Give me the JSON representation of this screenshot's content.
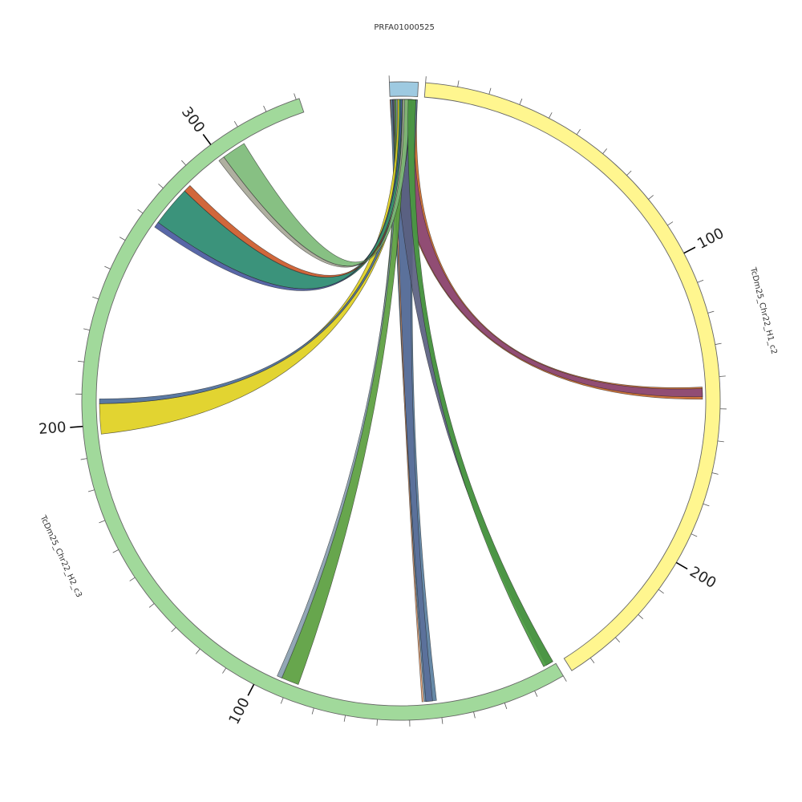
{
  "segments": [
    {
      "id": "chr_a",
      "name": "PRFA01000525",
      "length": 9,
      "color": "#9ecae1"
    },
    {
      "id": "chr_b",
      "name": "TcDm25_Chr22_H1_c2",
      "length": 247,
      "color": "#fff68f"
    },
    {
      "id": "chr_c",
      "name": "TcDm25_Chr22_H2_c3",
      "length": 331,
      "color": "#a1d99b"
    }
  ],
  "ticks": {
    "minor_step": 10,
    "major_step": 100
  },
  "links": [
    {
      "from": {
        "seg": "chr_a",
        "start": 0.0,
        "end": 9.0
      },
      "to": {
        "seg": "chr_b",
        "start": 143.0,
        "end": 147.0
      },
      "color": "#cd6a2a"
    },
    {
      "from": {
        "seg": "chr_a",
        "start": 0.5,
        "end": 8.0
      },
      "to": {
        "seg": "chr_b",
        "start": 143.5,
        "end": 146.2
      },
      "color": "#8b4a7a"
    },
    {
      "from": {
        "seg": "chr_a",
        "start": 0.2,
        "end": 9.0
      },
      "to": {
        "seg": "chr_c",
        "start": 41.0,
        "end": 45.0
      },
      "color": "#5a7fa0"
    },
    {
      "from": {
        "seg": "chr_a",
        "start": 0.8,
        "end": 8.5
      },
      "to": {
        "seg": "chr_c",
        "start": 42.3,
        "end": 44.5
      },
      "color": "#5a6f9a"
    },
    {
      "from": {
        "seg": "chr_a",
        "start": 1.0,
        "end": 1.6
      },
      "to": {
        "seg": "chr_c",
        "start": 45.3,
        "end": 45.8
      },
      "color": "#e8a070"
    },
    {
      "from": {
        "seg": "chr_a",
        "start": 1.0,
        "end": 8.0
      },
      "to": {
        "seg": "chr_c",
        "start": 0.7,
        "end": 3.0
      },
      "color": "#5a6080"
    },
    {
      "from": {
        "seg": "chr_a",
        "start": 1.5,
        "end": 5.0
      },
      "to": {
        "seg": "chr_c",
        "start": 87.0,
        "end": 93.0
      },
      "color": "#5a9e3e"
    },
    {
      "from": {
        "seg": "chr_a",
        "start": 2.0,
        "end": 2.5
      },
      "to": {
        "seg": "chr_c",
        "start": 92.8,
        "end": 94.5
      },
      "color": "#8aa0b0"
    },
    {
      "from": {
        "seg": "chr_a",
        "start": 2.5,
        "end": 7.0
      },
      "to": {
        "seg": "chr_c",
        "start": 197.0,
        "end": 207.0
      },
      "color": "#e0d020"
    },
    {
      "from": {
        "seg": "chr_a",
        "start": 5.5,
        "end": 7.0
      },
      "to": {
        "seg": "chr_c",
        "start": 207.0,
        "end": 208.6
      },
      "color": "#4d6e9a"
    },
    {
      "from": {
        "seg": "chr_a",
        "start": 3.0,
        "end": 6.0
      },
      "to": {
        "seg": "chr_c",
        "start": 270.5,
        "end": 284.0
      },
      "color": "#2a8a70"
    },
    {
      "from": {
        "seg": "chr_a",
        "start": 3.5,
        "end": 4.0
      },
      "to": {
        "seg": "chr_c",
        "start": 268.6,
        "end": 270.5
      },
      "color": "#4a5aa0"
    },
    {
      "from": {
        "seg": "chr_a",
        "start": 5.0,
        "end": 5.8
      },
      "to": {
        "seg": "chr_c",
        "start": 284.0,
        "end": 286.5
      },
      "color": "#cd5a2a"
    },
    {
      "from": {
        "seg": "chr_a",
        "start": 4.0,
        "end": 6.5
      },
      "to": {
        "seg": "chr_c",
        "start": 301.0,
        "end": 309.0
      },
      "color": "#7dbb78"
    },
    {
      "from": {
        "seg": "chr_a",
        "start": 4.2,
        "end": 4.8
      },
      "to": {
        "seg": "chr_c",
        "start": 299.0,
        "end": 301.0
      },
      "color": "#a8a898"
    },
    {
      "from": {
        "seg": "chr_a",
        "start": 6.0,
        "end": 8.5
      },
      "to": {
        "seg": "chr_c",
        "start": 0.5,
        "end": 4.0
      },
      "color": "#4a9a40"
    }
  ]
}
